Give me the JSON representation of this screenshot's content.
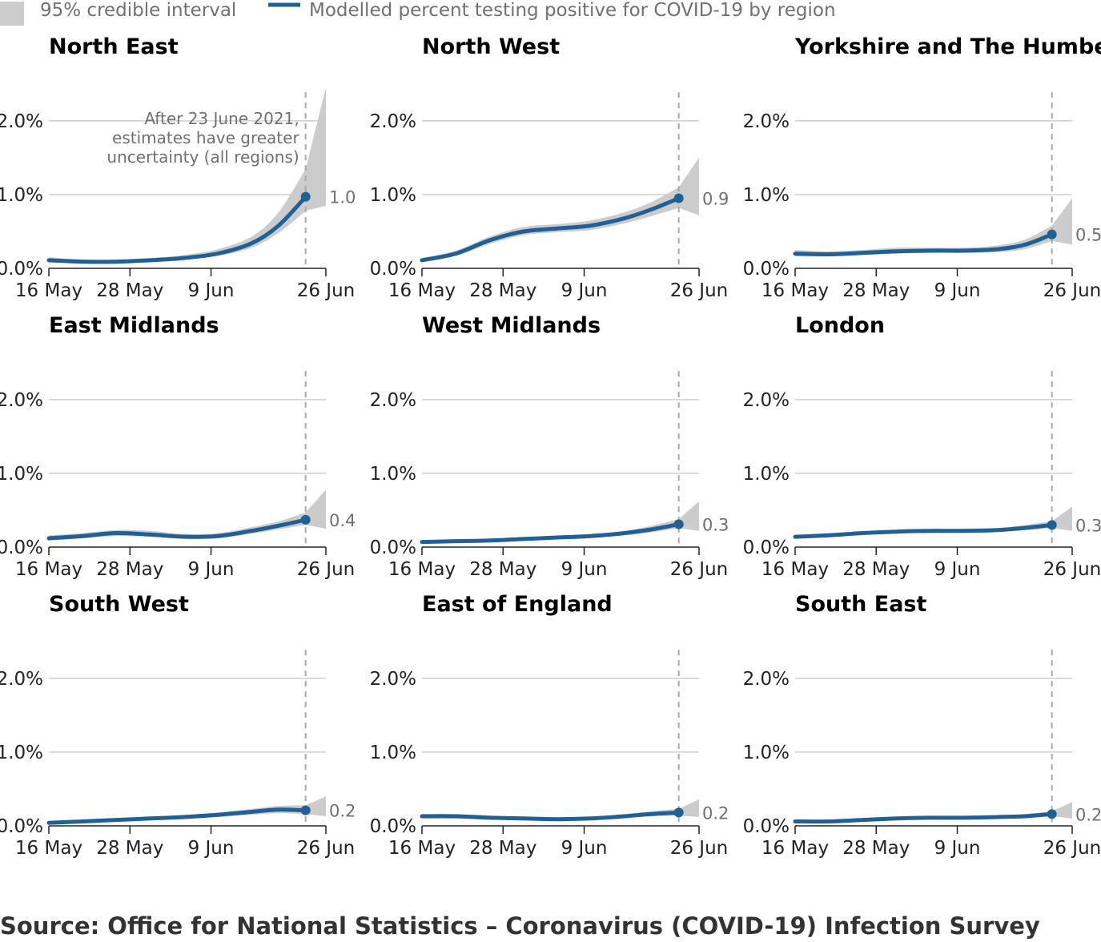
{
  "legend": {
    "interval_label": "95% credible interval",
    "line_label": "Modelled percent testing positive for COVID-19 by region"
  },
  "annotation": {
    "lines": [
      "After 23 June 2021,",
      "estimates have greater",
      "uncertainty (all regions)"
    ]
  },
  "source": "Source: Office for National Statistics – Coronavirus (COVID-19) Infection Survey",
  "colors": {
    "line": "#206095",
    "band": "#cccccc",
    "grid": "#d0d0d0",
    "marker": "#a8a8a8"
  },
  "chart_data": {
    "type": "line",
    "x_ticks": [
      {
        "label": "16 May",
        "date": "2021-05-16"
      },
      {
        "label": "28 May",
        "date": "2021-05-28"
      },
      {
        "label": "9 Jun",
        "date": "2021-06-09"
      },
      {
        "label": "26 Jun",
        "date": "2021-06-26"
      }
    ],
    "x_range": [
      "2021-05-16",
      "2021-06-26"
    ],
    "y_ticks": [
      {
        "label": "0.0%",
        "value": 0
      },
      {
        "label": "1.0%",
        "value": 1
      },
      {
        "label": "2.0%",
        "value": 2
      }
    ],
    "ylim": [
      0,
      2.4
    ],
    "grid": "horizontal",
    "marker_date": "2021-06-23",
    "legend_position": "top-left",
    "dates": [
      "2021-05-16",
      "2021-05-21",
      "2021-05-26",
      "2021-05-31",
      "2021-06-05",
      "2021-06-10",
      "2021-06-15",
      "2021-06-19",
      "2021-06-23"
    ],
    "panels": [
      {
        "title": "North East",
        "end_label": "1.0",
        "values": [
          0.11,
          0.09,
          0.09,
          0.11,
          0.14,
          0.2,
          0.34,
          0.58,
          0.97
        ],
        "lower": [
          0.08,
          0.07,
          0.07,
          0.09,
          0.12,
          0.17,
          0.28,
          0.48,
          0.78
        ],
        "upper": [
          0.15,
          0.12,
          0.12,
          0.14,
          0.18,
          0.26,
          0.43,
          0.76,
          1.35
        ],
        "band_end": {
          "date": "2021-06-26",
          "lower": 0.85,
          "upper": 2.45
        }
      },
      {
        "title": "North West",
        "end_label": "0.9",
        "values": [
          0.11,
          0.2,
          0.38,
          0.5,
          0.54,
          0.58,
          0.68,
          0.8,
          0.95
        ],
        "lower": [
          0.09,
          0.17,
          0.33,
          0.45,
          0.49,
          0.52,
          0.61,
          0.71,
          0.82
        ],
        "upper": [
          0.14,
          0.24,
          0.43,
          0.56,
          0.6,
          0.65,
          0.76,
          0.9,
          1.1
        ],
        "band_end": {
          "date": "2021-06-26",
          "lower": 0.72,
          "upper": 1.5
        }
      },
      {
        "title": "Yorkshire and The Humber",
        "end_label": "0.5",
        "values": [
          0.2,
          0.19,
          0.21,
          0.23,
          0.24,
          0.24,
          0.26,
          0.32,
          0.46
        ],
        "lower": [
          0.16,
          0.16,
          0.18,
          0.2,
          0.21,
          0.21,
          0.22,
          0.26,
          0.37
        ],
        "upper": [
          0.25,
          0.23,
          0.25,
          0.28,
          0.28,
          0.28,
          0.31,
          0.39,
          0.58
        ],
        "band_end": {
          "date": "2021-06-26",
          "lower": 0.32,
          "upper": 0.95
        }
      },
      {
        "title": "East Midlands",
        "end_label": "0.4",
        "values": [
          0.12,
          0.15,
          0.19,
          0.17,
          0.14,
          0.15,
          0.22,
          0.29,
          0.37
        ],
        "lower": [
          0.09,
          0.12,
          0.15,
          0.14,
          0.12,
          0.12,
          0.18,
          0.24,
          0.3
        ],
        "upper": [
          0.16,
          0.19,
          0.23,
          0.22,
          0.18,
          0.19,
          0.27,
          0.35,
          0.47
        ],
        "band_end": {
          "date": "2021-06-26",
          "lower": 0.25,
          "upper": 0.78
        }
      },
      {
        "title": "West Midlands",
        "end_label": "0.3",
        "values": [
          0.07,
          0.08,
          0.09,
          0.11,
          0.13,
          0.15,
          0.19,
          0.24,
          0.31
        ],
        "lower": [
          0.05,
          0.06,
          0.08,
          0.09,
          0.11,
          0.13,
          0.16,
          0.2,
          0.26
        ],
        "upper": [
          0.09,
          0.1,
          0.11,
          0.13,
          0.15,
          0.18,
          0.22,
          0.29,
          0.38
        ],
        "band_end": {
          "date": "2021-06-26",
          "lower": 0.22,
          "upper": 0.62
        }
      },
      {
        "title": "London",
        "end_label": "0.3",
        "values": [
          0.14,
          0.16,
          0.19,
          0.21,
          0.22,
          0.22,
          0.23,
          0.26,
          0.3
        ],
        "lower": [
          0.12,
          0.14,
          0.17,
          0.19,
          0.19,
          0.2,
          0.21,
          0.23,
          0.26
        ],
        "upper": [
          0.16,
          0.18,
          0.21,
          0.23,
          0.24,
          0.25,
          0.26,
          0.3,
          0.35
        ],
        "band_end": {
          "date": "2021-06-26",
          "lower": 0.22,
          "upper": 0.55
        }
      },
      {
        "title": "South West",
        "end_label": "0.2",
        "values": [
          0.04,
          0.06,
          0.08,
          0.1,
          0.12,
          0.15,
          0.19,
          0.22,
          0.21
        ],
        "lower": [
          0.03,
          0.04,
          0.06,
          0.08,
          0.1,
          0.12,
          0.15,
          0.17,
          0.16
        ],
        "upper": [
          0.05,
          0.07,
          0.1,
          0.12,
          0.15,
          0.18,
          0.23,
          0.27,
          0.28
        ],
        "band_end": {
          "date": "2021-06-26",
          "lower": 0.13,
          "upper": 0.4
        }
      },
      {
        "title": "East of England",
        "end_label": "0.2",
        "values": [
          0.13,
          0.13,
          0.11,
          0.1,
          0.09,
          0.1,
          0.13,
          0.16,
          0.18
        ],
        "lower": [
          0.1,
          0.1,
          0.09,
          0.08,
          0.08,
          0.08,
          0.11,
          0.13,
          0.14
        ],
        "upper": [
          0.16,
          0.16,
          0.14,
          0.12,
          0.11,
          0.12,
          0.16,
          0.2,
          0.23
        ],
        "band_end": {
          "date": "2021-06-26",
          "lower": 0.12,
          "upper": 0.36
        }
      },
      {
        "title": "South East",
        "end_label": "0.2",
        "values": [
          0.06,
          0.06,
          0.08,
          0.1,
          0.11,
          0.11,
          0.12,
          0.13,
          0.16
        ],
        "lower": [
          0.05,
          0.05,
          0.07,
          0.08,
          0.09,
          0.09,
          0.1,
          0.11,
          0.13
        ],
        "upper": [
          0.07,
          0.08,
          0.09,
          0.11,
          0.12,
          0.13,
          0.14,
          0.16,
          0.2
        ],
        "band_end": {
          "date": "2021-06-26",
          "lower": 0.1,
          "upper": 0.32
        }
      }
    ]
  }
}
